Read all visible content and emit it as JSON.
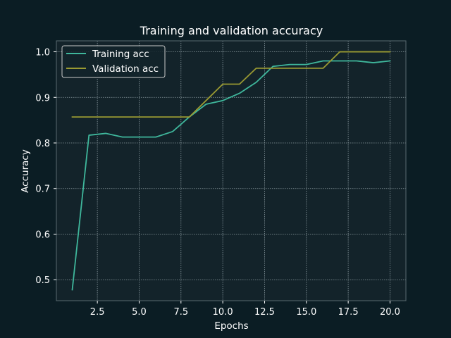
{
  "chart_data": {
    "type": "line",
    "title": "Training and validation accuracy",
    "xlabel": "Epochs",
    "ylabel": "Accuracy",
    "xlim": [
      0.05,
      20.95
    ],
    "ylim": [
      0.454,
      1.024
    ],
    "x_ticks": [
      2.5,
      5.0,
      7.5,
      10.0,
      12.5,
      15.0,
      17.5,
      20.0
    ],
    "x_tick_labels": [
      "2.5",
      "5.0",
      "7.5",
      "10.0",
      "12.5",
      "15.0",
      "17.5",
      "20.0"
    ],
    "y_ticks": [
      0.5,
      0.6,
      0.7,
      0.8,
      0.9,
      1.0
    ],
    "y_tick_labels": [
      "0.5",
      "0.6",
      "0.7",
      "0.8",
      "0.9",
      "1.0"
    ],
    "grid": true,
    "legend_position": "upper-left",
    "x": [
      1,
      2,
      3,
      4,
      5,
      6,
      7,
      8,
      9,
      10,
      11,
      12,
      13,
      14,
      15,
      16,
      17,
      18,
      19,
      20
    ],
    "series": [
      {
        "name": "Training acc",
        "color": "#3fb79c",
        "values": [
          0.478,
          0.817,
          0.821,
          0.813,
          0.813,
          0.813,
          0.825,
          0.857,
          0.885,
          0.893,
          0.909,
          0.933,
          0.968,
          0.972,
          0.972,
          0.98,
          0.98,
          0.98,
          0.976,
          0.98
        ]
      },
      {
        "name": "Validation acc",
        "color": "#9a9a32",
        "values": [
          0.857,
          0.857,
          0.857,
          0.857,
          0.857,
          0.857,
          0.857,
          0.857,
          0.893,
          0.929,
          0.929,
          0.964,
          0.964,
          0.964,
          0.964,
          0.964,
          1.0,
          1.0,
          1.0,
          1.0
        ]
      }
    ],
    "colors": {
      "figure_bg": "#0b1d24",
      "axes_bg": "#13232a",
      "grid": "#8a9aa0",
      "spine": "#5a6a70",
      "text": "#ffffff",
      "legend_bg": "#13232a",
      "legend_border": "#c8c8c8"
    }
  }
}
